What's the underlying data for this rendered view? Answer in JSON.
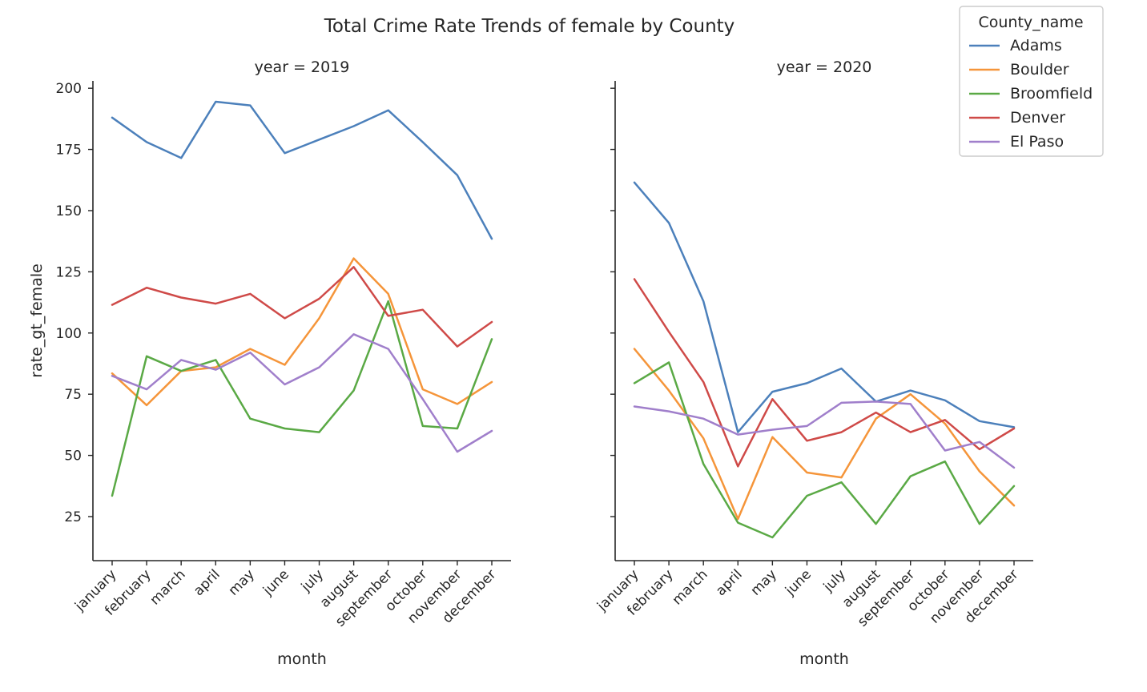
{
  "chart_data": {
    "type": "line",
    "title": "Total Crime Rate Trends of female by County",
    "xlabel": "month",
    "ylabel": "rate_gt_female",
    "ylim": [
      7,
      203
    ],
    "yticks": [
      25,
      50,
      75,
      100,
      125,
      150,
      175,
      200
    ],
    "grid": false,
    "legend": {
      "title": "County_name",
      "placement": "top-right"
    },
    "categories": [
      "january",
      "february",
      "march",
      "april",
      "may",
      "june",
      "july",
      "august",
      "september",
      "october",
      "november",
      "december"
    ],
    "colors": {
      "Adams": "#4c80bb",
      "Boulder": "#f5953a",
      "Broomfield": "#5aa945",
      "Denver": "#cf4a48",
      "El Paso": "#a07fcb"
    },
    "panels": [
      {
        "title": "year = 2019",
        "series": [
          {
            "name": "Adams",
            "values": [
              188,
              178,
              171.5,
              194.5,
              193,
              173.5,
              179,
              184.5,
              191,
              178,
              164.5,
              138.5
            ]
          },
          {
            "name": "Boulder",
            "values": [
              83.5,
              70.5,
              84.5,
              86,
              93.5,
              87,
              106,
              130.5,
              116,
              77,
              71,
              80
            ]
          },
          {
            "name": "Broomfield",
            "values": [
              33.5,
              90.5,
              84.5,
              89,
              65,
              61,
              59.5,
              76.5,
              113,
              62,
              61,
              97.5
            ]
          },
          {
            "name": "Denver",
            "values": [
              111.5,
              118.5,
              114.5,
              112,
              116,
              106,
              114,
              127,
              107,
              109.5,
              94.5,
              104.5
            ]
          },
          {
            "name": "El Paso",
            "values": [
              82.5,
              77,
              89,
              85,
              92,
              79,
              86,
              99.5,
              93.5,
              73,
              51.5,
              60
            ]
          }
        ]
      },
      {
        "title": "year = 2020",
        "series": [
          {
            "name": "Adams",
            "values": [
              161.5,
              145,
              113,
              59.5,
              76,
              79.5,
              85.5,
              72,
              76.5,
              72.5,
              64,
              61.5
            ]
          },
          {
            "name": "Boulder",
            "values": [
              93.5,
              76.5,
              57,
              24,
              57.5,
              43,
              41,
              65,
              75,
              63,
              43.5,
              29.5
            ]
          },
          {
            "name": "Broomfield",
            "values": [
              79.5,
              88,
              46.5,
              22.5,
              16.5,
              33.5,
              39,
              22,
              41.5,
              47.5,
              22,
              37.5
            ]
          },
          {
            "name": "Denver",
            "values": [
              122,
              100.5,
              80,
              45.5,
              73,
              56,
              59.5,
              67.5,
              59.5,
              64.5,
              52.5,
              61
            ]
          },
          {
            "name": "El Paso",
            "values": [
              70,
              68,
              65,
              58.5,
              60.5,
              62,
              71.5,
              72,
              71,
              52,
              55.5,
              45
            ]
          }
        ]
      }
    ]
  }
}
